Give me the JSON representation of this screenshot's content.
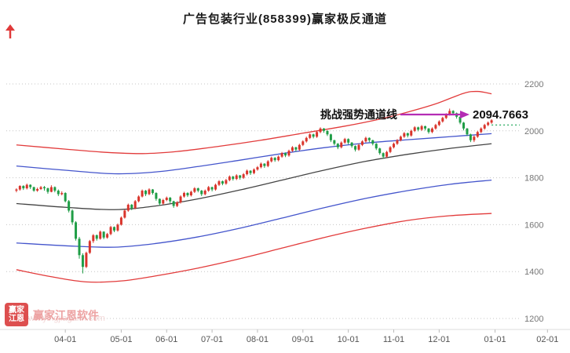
{
  "title": "广告包装行业(858399)赢家极反通道",
  "annotation": {
    "label": "挑战强势通道线",
    "price": "2094.7663"
  },
  "watermark": {
    "logo_top": "赢家",
    "logo_bottom": "江恩",
    "brand": "赢家江恩软件",
    "site": "www.yingjiagann.com"
  },
  "chart_data": {
    "type": "candlestick",
    "title": "广告包装行业(858399)赢家极反通道",
    "ylabel": "",
    "xlabel": "",
    "ylim": [
      1150,
      2420
    ],
    "y_ticks": [
      2200,
      2000,
      1800,
      1600,
      1400,
      1200
    ],
    "x_ticks": [
      {
        "label": "04-01",
        "i": 14
      },
      {
        "label": "05-01",
        "i": 30
      },
      {
        "label": "06-01",
        "i": 43
      },
      {
        "label": "07-01",
        "i": 56
      },
      {
        "label": "08-01",
        "i": 69
      },
      {
        "label": "09-01",
        "i": 82
      },
      {
        "label": "10-01",
        "i": 95
      },
      {
        "label": "11-01",
        "i": 108
      },
      {
        "label": "12-01",
        "i": 121
      },
      {
        "label": "01-01",
        "i": 137
      },
      {
        "label": "02-01",
        "i": 152
      }
    ],
    "colors": {
      "up": "#d9342b",
      "down": "#1f9d46",
      "outer": "#e23b3b",
      "inner": "#4455cc",
      "mid": "#444444",
      "level": "#0a9e4a",
      "grid": "#c4c4c4",
      "axis_text": "#777777",
      "arrow": "#b42cb4"
    },
    "candles": [
      [
        1745,
        1755,
        1738,
        1750
      ],
      [
        1750,
        1768,
        1745,
        1765
      ],
      [
        1765,
        1768,
        1748,
        1755
      ],
      [
        1755,
        1775,
        1750,
        1770
      ],
      [
        1770,
        1772,
        1752,
        1760
      ],
      [
        1760,
        1762,
        1740,
        1745
      ],
      [
        1745,
        1758,
        1740,
        1752
      ],
      [
        1752,
        1765,
        1748,
        1760
      ],
      [
        1760,
        1765,
        1745,
        1755
      ],
      [
        1755,
        1758,
        1732,
        1740
      ],
      [
        1740,
        1768,
        1738,
        1760
      ],
      [
        1760,
        1763,
        1738,
        1745
      ],
      [
        1745,
        1750,
        1722,
        1730
      ],
      [
        1730,
        1742,
        1725,
        1735
      ],
      [
        1735,
        1738,
        1695,
        1700
      ],
      [
        1700,
        1705,
        1652,
        1660
      ],
      [
        1660,
        1665,
        1600,
        1610
      ],
      [
        1610,
        1615,
        1532,
        1540
      ],
      [
        1540,
        1548,
        1455,
        1470
      ],
      [
        1470,
        1478,
        1392,
        1420
      ],
      [
        1420,
        1485,
        1415,
        1480
      ],
      [
        1480,
        1535,
        1475,
        1530
      ],
      [
        1530,
        1560,
        1522,
        1555
      ],
      [
        1555,
        1558,
        1532,
        1540
      ],
      [
        1540,
        1575,
        1536,
        1570
      ],
      [
        1570,
        1572,
        1538,
        1545
      ],
      [
        1545,
        1565,
        1540,
        1560
      ],
      [
        1560,
        1595,
        1555,
        1590
      ],
      [
        1590,
        1592,
        1568,
        1575
      ],
      [
        1575,
        1605,
        1570,
        1600
      ],
      [
        1600,
        1635,
        1596,
        1630
      ],
      [
        1630,
        1665,
        1626,
        1660
      ],
      [
        1660,
        1690,
        1655,
        1685
      ],
      [
        1685,
        1688,
        1662,
        1670
      ],
      [
        1670,
        1705,
        1666,
        1700
      ],
      [
        1700,
        1725,
        1695,
        1720
      ],
      [
        1720,
        1750,
        1716,
        1745
      ],
      [
        1745,
        1748,
        1722,
        1730
      ],
      [
        1730,
        1755,
        1726,
        1750
      ],
      [
        1750,
        1752,
        1728,
        1735
      ],
      [
        1735,
        1738,
        1702,
        1710
      ],
      [
        1710,
        1712,
        1682,
        1690
      ],
      [
        1690,
        1710,
        1685,
        1705
      ],
      [
        1705,
        1720,
        1700,
        1715
      ],
      [
        1715,
        1718,
        1692,
        1700
      ],
      [
        1700,
        1702,
        1672,
        1680
      ],
      [
        1680,
        1700,
        1675,
        1695
      ],
      [
        1695,
        1725,
        1690,
        1720
      ],
      [
        1720,
        1740,
        1715,
        1735
      ],
      [
        1735,
        1738,
        1718,
        1725
      ],
      [
        1725,
        1745,
        1720,
        1740
      ],
      [
        1740,
        1760,
        1735,
        1755
      ],
      [
        1755,
        1758,
        1738,
        1745
      ],
      [
        1745,
        1748,
        1722,
        1730
      ],
      [
        1730,
        1750,
        1725,
        1745
      ],
      [
        1745,
        1765,
        1740,
        1760
      ],
      [
        1760,
        1762,
        1742,
        1750
      ],
      [
        1750,
        1775,
        1745,
        1770
      ],
      [
        1770,
        1790,
        1765,
        1785
      ],
      [
        1785,
        1788,
        1768,
        1775
      ],
      [
        1775,
        1795,
        1770,
        1790
      ],
      [
        1790,
        1810,
        1785,
        1805
      ],
      [
        1805,
        1808,
        1788,
        1795
      ],
      [
        1795,
        1815,
        1790,
        1810
      ],
      [
        1810,
        1812,
        1792,
        1800
      ],
      [
        1800,
        1820,
        1795,
        1815
      ],
      [
        1815,
        1835,
        1810,
        1830
      ],
      [
        1830,
        1832,
        1812,
        1820
      ],
      [
        1820,
        1840,
        1815,
        1835
      ],
      [
        1835,
        1850,
        1830,
        1845
      ],
      [
        1845,
        1865,
        1840,
        1860
      ],
      [
        1860,
        1862,
        1842,
        1850
      ],
      [
        1850,
        1875,
        1845,
        1870
      ],
      [
        1870,
        1890,
        1865,
        1885
      ],
      [
        1885,
        1888,
        1868,
        1875
      ],
      [
        1875,
        1895,
        1870,
        1890
      ],
      [
        1890,
        1910,
        1885,
        1905
      ],
      [
        1905,
        1908,
        1888,
        1895
      ],
      [
        1895,
        1920,
        1890,
        1915
      ],
      [
        1915,
        1935,
        1910,
        1930
      ],
      [
        1930,
        1932,
        1912,
        1920
      ],
      [
        1920,
        1945,
        1915,
        1940
      ],
      [
        1940,
        1960,
        1935,
        1955
      ],
      [
        1955,
        1975,
        1950,
        1970
      ],
      [
        1970,
        1990,
        1965,
        1985
      ],
      [
        1985,
        1988,
        1968,
        1975
      ],
      [
        1975,
        2000,
        1970,
        1995
      ],
      [
        1995,
        2015,
        1990,
        2010
      ],
      [
        2010,
        2012,
        1992,
        2000
      ],
      [
        2000,
        2002,
        1978,
        1985
      ],
      [
        1985,
        1988,
        1952,
        1960
      ],
      [
        1960,
        1962,
        1938,
        1945
      ],
      [
        1945,
        1948,
        1922,
        1930
      ],
      [
        1930,
        1955,
        1925,
        1950
      ],
      [
        1950,
        1970,
        1945,
        1965
      ],
      [
        1965,
        1968,
        1942,
        1950
      ],
      [
        1950,
        1952,
        1928,
        1935
      ],
      [
        1935,
        1938,
        1912,
        1920
      ],
      [
        1920,
        1945,
        1915,
        1940
      ],
      [
        1940,
        1960,
        1935,
        1955
      ],
      [
        1955,
        1975,
        1950,
        1970
      ],
      [
        1970,
        1972,
        1952,
        1960
      ],
      [
        1960,
        1962,
        1938,
        1945
      ],
      [
        1945,
        1948,
        1918,
        1925
      ],
      [
        1925,
        1928,
        1898,
        1905
      ],
      [
        1905,
        1908,
        1882,
        1890
      ],
      [
        1890,
        1915,
        1885,
        1910
      ],
      [
        1910,
        1935,
        1905,
        1930
      ],
      [
        1930,
        1950,
        1925,
        1945
      ],
      [
        1945,
        1965,
        1940,
        1960
      ],
      [
        1960,
        1980,
        1955,
        1975
      ],
      [
        1975,
        1995,
        1970,
        1990
      ],
      [
        1990,
        1992,
        1972,
        1980
      ],
      [
        1980,
        2005,
        1975,
        2000
      ],
      [
        2000,
        2020,
        1995,
        2015
      ],
      [
        2015,
        2018,
        1998,
        2005
      ],
      [
        2005,
        2025,
        2000,
        2020
      ],
      [
        2020,
        2022,
        2002,
        2010
      ],
      [
        2010,
        2012,
        1988,
        1995
      ],
      [
        1995,
        2015,
        1990,
        2010
      ],
      [
        2010,
        2030,
        2005,
        2025
      ],
      [
        2025,
        2045,
        2020,
        2040
      ],
      [
        2040,
        2060,
        2035,
        2055
      ],
      [
        2055,
        2075,
        2050,
        2070
      ],
      [
        2070,
        2094.7663,
        2065,
        2085
      ],
      [
        2085,
        2088,
        2068,
        2075
      ],
      [
        2075,
        2078,
        2052,
        2060
      ],
      [
        2060,
        2062,
        2028,
        2035
      ],
      [
        2035,
        2038,
        2002,
        2010
      ],
      [
        2010,
        2012,
        1978,
        1985
      ],
      [
        1985,
        1988,
        1952,
        1960
      ],
      [
        1960,
        1980,
        1952,
        1975
      ],
      [
        1975,
        2000,
        1970,
        1995
      ],
      [
        1995,
        2015,
        1990,
        2010
      ],
      [
        2010,
        2030,
        2005,
        2025
      ],
      [
        2025,
        2040,
        2020,
        2035
      ],
      [
        2035,
        2050,
        2030,
        2045
      ]
    ],
    "channels": [
      {
        "name": "upper-outer-rail",
        "color_key": "outer",
        "points": [
          [
            0,
            1940
          ],
          [
            14,
            1922
          ],
          [
            26,
            1908
          ],
          [
            36,
            1903
          ],
          [
            46,
            1912
          ],
          [
            58,
            1934
          ],
          [
            70,
            1960
          ],
          [
            82,
            1990
          ],
          [
            94,
            2020
          ],
          [
            104,
            2050
          ],
          [
            112,
            2080
          ],
          [
            120,
            2115
          ],
          [
            128,
            2160
          ],
          [
            132,
            2168
          ],
          [
            136,
            2158
          ]
        ]
      },
      {
        "name": "upper-inner-rail",
        "color_key": "inner",
        "points": [
          [
            0,
            1850
          ],
          [
            14,
            1832
          ],
          [
            28,
            1817
          ],
          [
            40,
            1825
          ],
          [
            52,
            1848
          ],
          [
            64,
            1875
          ],
          [
            76,
            1903
          ],
          [
            88,
            1928
          ],
          [
            100,
            1948
          ],
          [
            112,
            1962
          ],
          [
            124,
            1975
          ],
          [
            136,
            1988
          ]
        ]
      },
      {
        "name": "mid-line",
        "color_key": "mid",
        "points": [
          [
            0,
            1690
          ],
          [
            14,
            1674
          ],
          [
            28,
            1664
          ],
          [
            40,
            1680
          ],
          [
            52,
            1710
          ],
          [
            64,
            1748
          ],
          [
            76,
            1790
          ],
          [
            88,
            1832
          ],
          [
            100,
            1870
          ],
          [
            112,
            1900
          ],
          [
            124,
            1925
          ],
          [
            136,
            1945
          ]
        ]
      },
      {
        "name": "lower-inner-rail",
        "color_key": "inner",
        "points": [
          [
            0,
            1522
          ],
          [
            14,
            1510
          ],
          [
            28,
            1504
          ],
          [
            40,
            1520
          ],
          [
            52,
            1548
          ],
          [
            64,
            1585
          ],
          [
            76,
            1628
          ],
          [
            88,
            1672
          ],
          [
            100,
            1712
          ],
          [
            112,
            1745
          ],
          [
            124,
            1772
          ],
          [
            136,
            1790
          ]
        ]
      },
      {
        "name": "lower-outer-rail",
        "color_key": "outer",
        "points": [
          [
            0,
            1408
          ],
          [
            10,
            1378
          ],
          [
            20,
            1356
          ],
          [
            30,
            1360
          ],
          [
            40,
            1382
          ],
          [
            52,
            1415
          ],
          [
            64,
            1455
          ],
          [
            76,
            1500
          ],
          [
            88,
            1545
          ],
          [
            100,
            1585
          ],
          [
            112,
            1618
          ],
          [
            124,
            1638
          ],
          [
            136,
            1648
          ]
        ]
      }
    ],
    "level_line": {
      "value": 2025,
      "from_index": 136
    }
  }
}
